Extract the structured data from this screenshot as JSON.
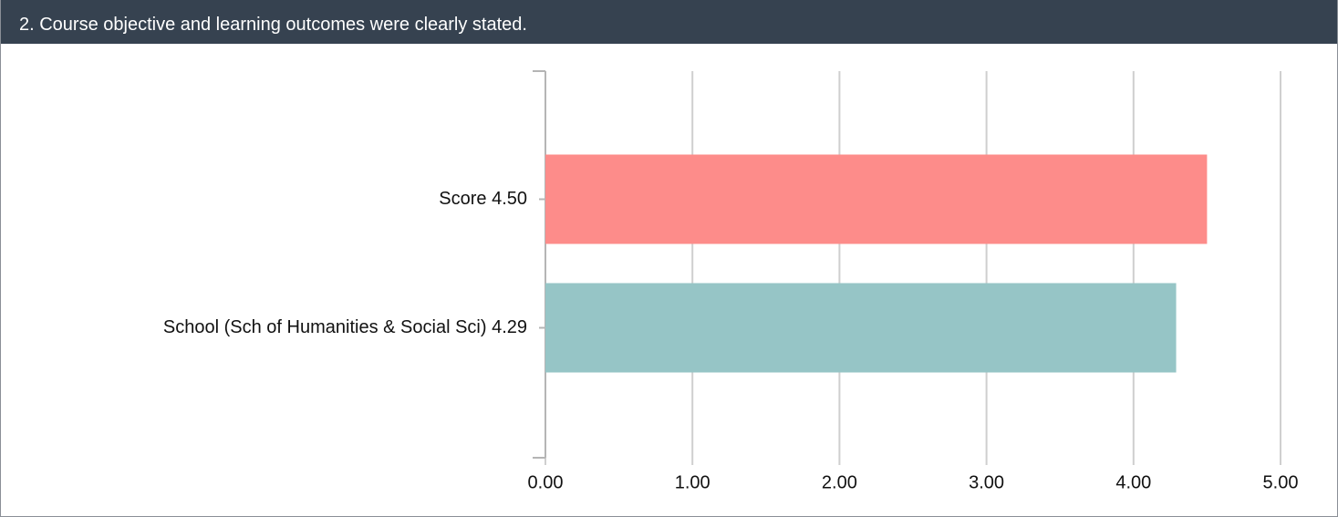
{
  "chart_data": {
    "type": "bar",
    "orientation": "horizontal",
    "title": "2. Course objective and learning outcomes were clearly stated.",
    "categories": [
      "Score 4.50",
      "School (Sch of Humanities & Social Sci) 4.29"
    ],
    "values": [
      4.5,
      4.29
    ],
    "colors": [
      "#fd8c8a",
      "#96c5c6"
    ],
    "xlim": [
      0,
      5
    ],
    "xticks": [
      {
        "value": 0,
        "label": "0.00"
      },
      {
        "value": 1,
        "label": "1.00"
      },
      {
        "value": 2,
        "label": "2.00"
      },
      {
        "value": 3,
        "label": "3.00"
      },
      {
        "value": 4,
        "label": "4.00"
      },
      {
        "value": 5,
        "label": "5.00"
      }
    ],
    "grid": true
  }
}
